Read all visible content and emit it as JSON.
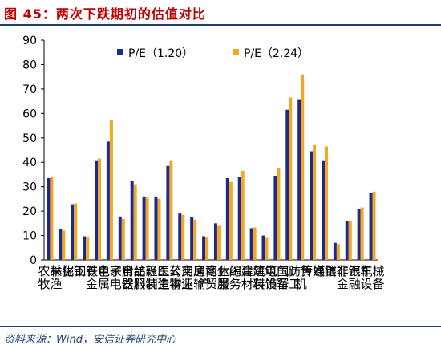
{
  "header": {
    "title": "图 45：两次下跌期初的估值对比"
  },
  "footer": {
    "source": "资料来源：Wind，安信证券研究中心"
  },
  "chart_data": {
    "type": "bar",
    "title": "",
    "xlabel": "",
    "ylabel": "",
    "ylim": [
      0,
      90
    ],
    "yticks": [
      0,
      10,
      20,
      30,
      40,
      50,
      60,
      70,
      80,
      90
    ],
    "grid": false,
    "legend": "top",
    "categories": [
      "农林牧渔",
      "采掘",
      "化工",
      "钢铁",
      "有色金属",
      "电子",
      "家用电器",
      "食品饮料",
      "纺织服装",
      "轻工制造",
      "医药生物",
      "公用事业",
      "交通运输",
      "房地产",
      "商业贸易",
      "休闲服务",
      "综合",
      "建筑材料",
      "建筑装饰",
      "电气设备",
      "国防军工",
      "计算机",
      "传媒",
      "通信",
      "银行",
      "非银金融",
      "汽车",
      "机械设备"
    ],
    "series": [
      {
        "name": "P/E（1.20）",
        "color": "#1b2a8f",
        "values": [
          33.5,
          12.8,
          22.8,
          9.7,
          40.5,
          48.5,
          17.8,
          32.5,
          26.0,
          26.0,
          38.5,
          19.0,
          17.5,
          9.7,
          15.0,
          33.5,
          34.0,
          13.0,
          10.0,
          34.5,
          61.5,
          65.5,
          44.5,
          40.5,
          7.0,
          16.0,
          20.8,
          27.5
        ]
      },
      {
        "name": "P/E（2.24）",
        "color": "#f5a623",
        "values": [
          34.0,
          12.0,
          23.2,
          9.2,
          41.5,
          57.5,
          16.8,
          31.0,
          25.5,
          25.0,
          40.5,
          18.5,
          16.5,
          9.2,
          14.0,
          32.0,
          36.5,
          13.3,
          9.0,
          37.8,
          66.5,
          76.0,
          47.0,
          46.5,
          6.5,
          16.0,
          21.5,
          28.0
        ]
      }
    ]
  }
}
